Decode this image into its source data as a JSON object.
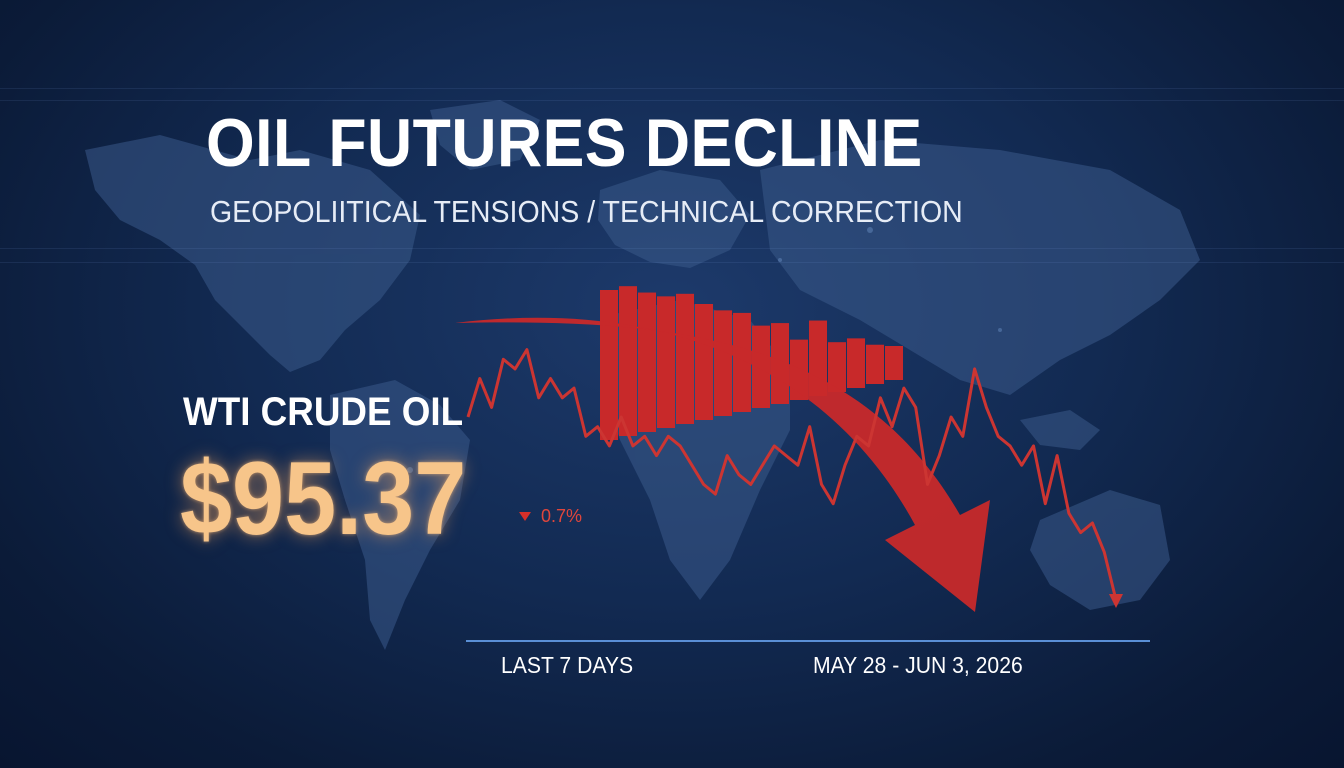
{
  "headline": "OIL FUTURES DECLINE",
  "subtitle": "GEOPOLIITICAL TENSIONS / TECHNICAL CORRECTION",
  "ticker": {
    "name": "WTI CRUDE OIL",
    "price": "$95.37",
    "change": "0.7%",
    "direction": "down"
  },
  "footer": {
    "period_label": "LAST 7 DAYS",
    "date_range": "MAY 28 - JUN 3, 2026"
  },
  "colors": {
    "background": "#122a52",
    "accent_red": "#c8292a",
    "price_glow": "#f7c58a",
    "baseline": "#5a8fd6"
  },
  "chart_data": {
    "type": "line",
    "title": "",
    "xlabel": "",
    "ylabel": "",
    "grid": false,
    "series": [
      {
        "values": [
          8,
          4,
          7,
          2,
          3,
          1,
          6,
          4,
          6,
          5,
          10,
          9,
          11,
          8,
          11,
          10,
          12,
          10,
          11,
          13,
          15,
          16,
          12,
          14,
          15,
          13,
          11,
          12,
          13,
          9,
          15,
          17,
          13,
          10,
          11,
          6,
          9,
          5,
          7,
          15,
          12,
          8,
          10,
          3,
          7,
          10,
          11,
          13,
          11,
          17,
          12,
          18,
          20,
          19,
          22,
          27
        ]
      }
    ],
    "bars": [
      44,
      47,
      42,
      39,
      41,
      33,
      28,
      26,
      16,
      18,
      5,
      20,
      3,
      6,
      1,
      0
    ]
  }
}
